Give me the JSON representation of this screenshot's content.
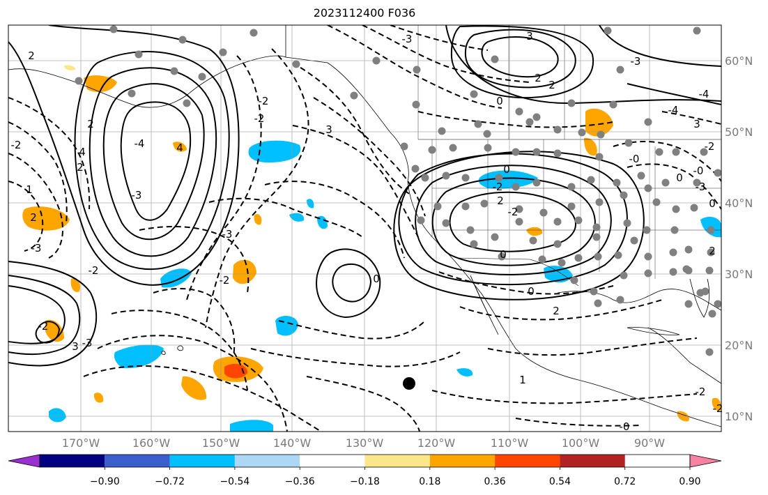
{
  "title": "2023112400 F036",
  "lat_labels": [
    "60°N",
    "50°N",
    "40°N",
    "30°N",
    "20°N",
    "10°N"
  ],
  "lon_labels": [
    "170°W",
    "160°W",
    "150°W",
    "140°W",
    "130°W",
    "120°W",
    "110°W",
    "100°W",
    "90°W"
  ],
  "colorbar": {
    "tick_labels": [
      "−0.90",
      "−0.72",
      "−0.54",
      "−0.36",
      "−0.18",
      "0.18",
      "0.36",
      "0.54",
      "0.72",
      "0.90"
    ],
    "colors": [
      "#9b30d0",
      "#000080",
      "#3a5fcd",
      "#00bfff",
      "#add8f5",
      "#ffffff",
      "#fbe68a",
      "#ffa500",
      "#ff4500",
      "#b22222",
      "#f781a0"
    ]
  },
  "contour_labels": [
    "-3",
    "2",
    "3",
    "2",
    "0",
    "2",
    "-2",
    "-2",
    "3",
    "2",
    "-2",
    "-4",
    "-3",
    "4",
    "4",
    "2",
    "1",
    "2",
    "-3",
    "-2",
    "-3",
    "-2",
    "-2",
    "3",
    "-3",
    "-4",
    "-4",
    "3",
    "-3",
    "-0",
    "-2",
    "-3",
    "0",
    "-2",
    "2",
    "-2",
    "0",
    "0",
    "2",
    "1",
    "-0",
    "-2",
    "2",
    "-2",
    "0",
    "0",
    "-0",
    "0"
  ],
  "map": {
    "gridlines": true,
    "point_color": "#808080",
    "land_outline_color": "#000000"
  }
}
